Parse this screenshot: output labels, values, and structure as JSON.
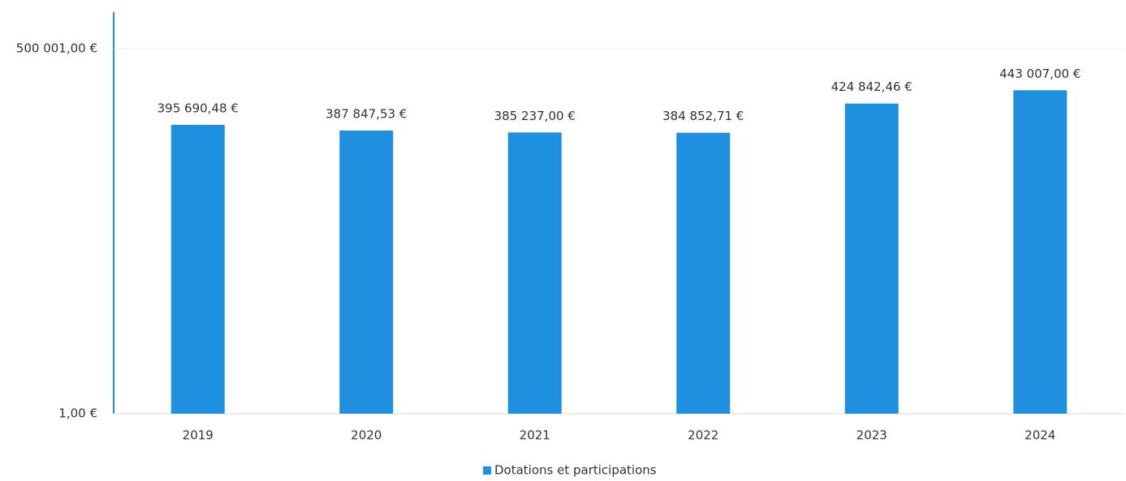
{
  "chart_data": {
    "type": "bar",
    "categories": [
      "2019",
      "2020",
      "2021",
      "2022",
      "2023",
      "2024"
    ],
    "series": [
      {
        "name": "Dotations et participations",
        "color": "#1f90e0",
        "values": [
          395690.48,
          387847.53,
          385237.0,
          384852.71,
          424842.46,
          443007.0
        ],
        "value_labels": [
          "395 690,48 €",
          "387 847,53 €",
          "385 237,00 €",
          "384 852,71 €",
          "424 842,46 €",
          "443 007,00 €"
        ]
      }
    ],
    "ylim": [
      1,
      500001
    ],
    "yticks": [
      {
        "value": 1,
        "label": "1,00 €"
      },
      {
        "value": 500001,
        "label": "500 001,00 €"
      }
    ],
    "grid": true,
    "legend": "bottom"
  }
}
